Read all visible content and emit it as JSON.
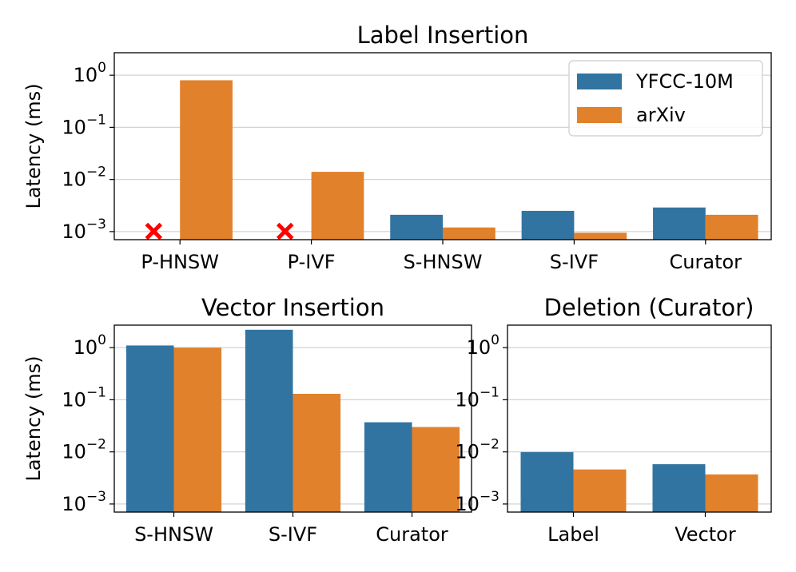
{
  "colors": {
    "yfcc": "#3274a1",
    "arxiv": "#e1812c",
    "grid": "#d3d3d3",
    "marker": "#ff0000"
  },
  "legend": {
    "items": [
      "YFCC-10M",
      "arXiv"
    ],
    "location": "upper-right"
  },
  "chart_data": [
    {
      "type": "bar",
      "title": "Label Insertion",
      "ylabel": "Latency (ms)",
      "xlabel": "",
      "yscale": "log",
      "ylim": [
        0.0007,
        2.7
      ],
      "yticks": [
        0.001,
        0.01,
        0.1,
        1
      ],
      "ytick_labels": [
        [
          "10",
          "−3"
        ],
        [
          "10",
          "−2"
        ],
        [
          "10",
          "−1"
        ],
        [
          "10",
          "0"
        ]
      ],
      "grid": true,
      "categories": [
        "P-HNSW",
        "P-IVF",
        "S-HNSW",
        "S-IVF",
        "Curator"
      ],
      "series": [
        {
          "name": "YFCC-10M",
          "values": [
            null,
            null,
            0.0021,
            0.0025,
            0.0029
          ]
        },
        {
          "name": "arXiv",
          "values": [
            0.8,
            0.014,
            0.0012,
            0.00095,
            0.0021
          ]
        }
      ],
      "markers": [
        {
          "category": "P-HNSW",
          "series": "YFCC-10M",
          "symbol": "x"
        },
        {
          "category": "P-IVF",
          "series": "YFCC-10M",
          "symbol": "x"
        }
      ]
    },
    {
      "type": "bar",
      "title": "Vector Insertion",
      "ylabel": "Latency (ms)",
      "xlabel": "",
      "yscale": "log",
      "ylim": [
        0.0007,
        2.7
      ],
      "yticks": [
        0.001,
        0.01,
        0.1,
        1
      ],
      "ytick_labels": [
        [
          "10",
          "−3"
        ],
        [
          "10",
          "−2"
        ],
        [
          "10",
          "−1"
        ],
        [
          "10",
          "0"
        ]
      ],
      "grid": true,
      "categories": [
        "S-HNSW",
        "S-IVF",
        "Curator"
      ],
      "series": [
        {
          "name": "YFCC-10M",
          "values": [
            1.1,
            2.2,
            0.037
          ]
        },
        {
          "name": "arXiv",
          "values": [
            1.0,
            0.13,
            0.03
          ]
        }
      ]
    },
    {
      "type": "bar",
      "title": "Deletion (Curator)",
      "ylabel": "",
      "xlabel": "",
      "yscale": "log",
      "ylim": [
        0.0007,
        2.7
      ],
      "yticks": [
        0.001,
        0.01,
        0.1,
        1
      ],
      "ytick_labels": [
        [
          "10",
          "−3"
        ],
        [
          "10",
          "−2"
        ],
        [
          "10",
          "−1"
        ],
        [
          "10",
          "0"
        ]
      ],
      "grid": true,
      "categories": [
        "Label",
        "Vector"
      ],
      "series": [
        {
          "name": "YFCC-10M",
          "values": [
            0.0099,
            0.0058
          ]
        },
        {
          "name": "arXiv",
          "values": [
            0.0046,
            0.0037
          ]
        }
      ]
    }
  ]
}
